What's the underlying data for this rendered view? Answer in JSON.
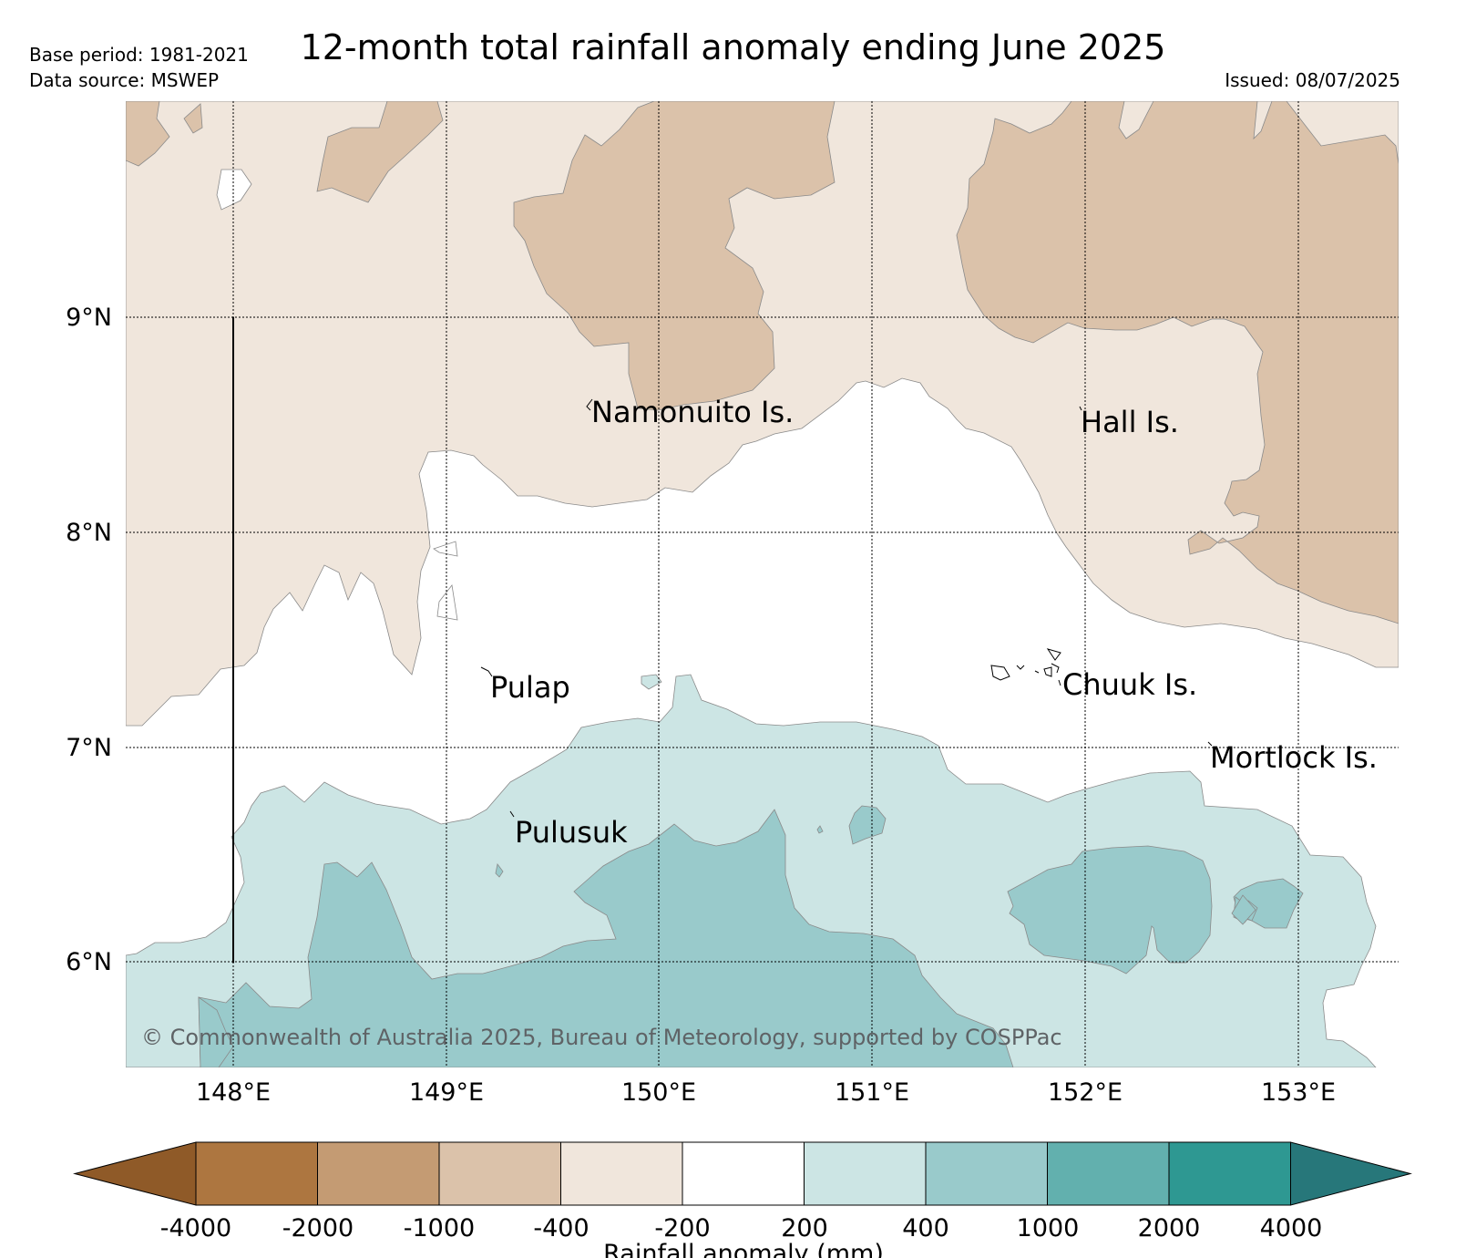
{
  "header": {
    "title": "12-month total rainfall anomaly ending June 2025",
    "base_period": "Base period: 1981-2021",
    "data_source": "Data source: MSWEP",
    "issued": "Issued: 08/07/2025"
  },
  "map": {
    "lat_ticks": [
      "9°N",
      "8°N",
      "7°N",
      "6°N"
    ],
    "lon_ticks": [
      "148°E",
      "149°E",
      "150°E",
      "151°E",
      "152°E",
      "153°E"
    ],
    "places": [
      "Namonuito Is.",
      "Hall Is.",
      "Pulap",
      "Chuuk Is.",
      "Mortlock Is.",
      "Pulusuk"
    ],
    "copyright": "© Commonwealth of Australia 2025, Bureau of Meteorology, supported by COSPPac"
  },
  "colorbar": {
    "label": "Rainfall anomaly (mm)",
    "ticks": [
      "-4000",
      "-2000",
      "-1000",
      "-400",
      "-200",
      "200",
      "400",
      "1000",
      "2000",
      "4000"
    ],
    "colors": [
      "#8f5a28",
      "#ad7640",
      "#c49b73",
      "#dbc2aa",
      "#f0e6dc",
      "#ffffff",
      "#cce5e4",
      "#99cacb",
      "#62b0ae",
      "#2e9892",
      "#27777a"
    ]
  }
}
